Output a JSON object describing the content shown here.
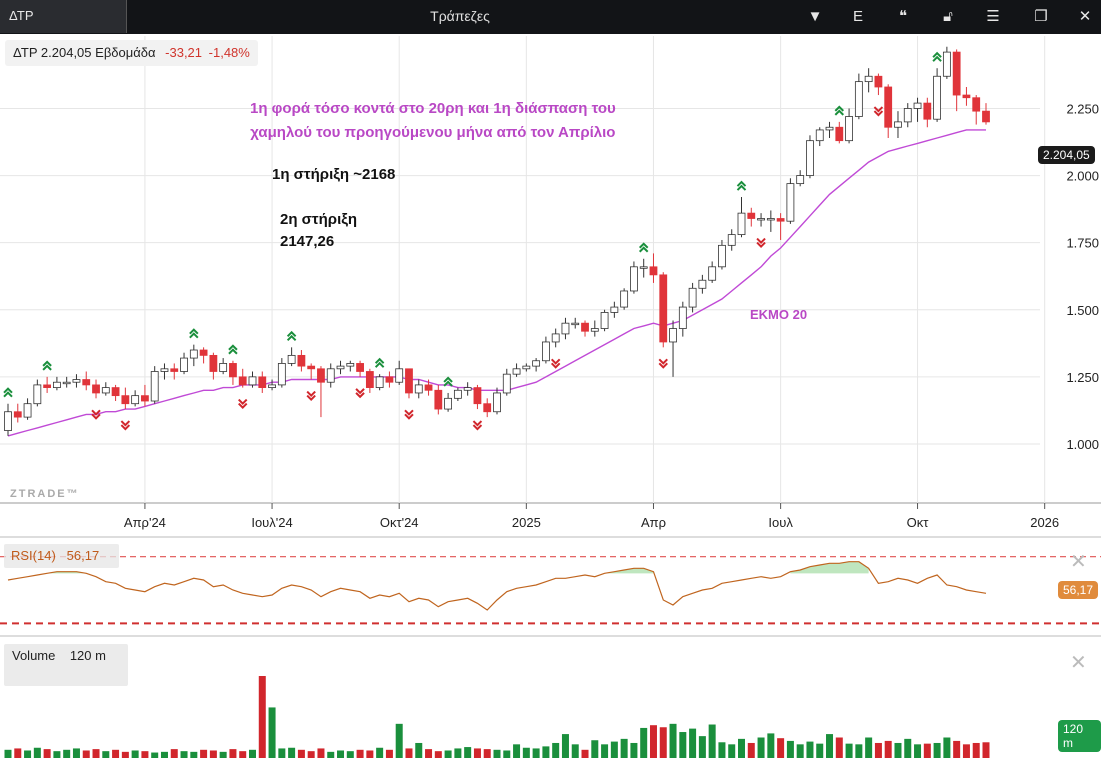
{
  "window": {
    "tab_label": "ΔΤΡ",
    "title": "Τράπεζες",
    "toolbar_icons": [
      "chevron-down-icon",
      "e-icon",
      "quote-icon",
      "lock-icon",
      "menu-icon",
      "restore-icon",
      "close-icon"
    ],
    "toolbar_e_label": "E"
  },
  "header": {
    "symbol_price": "ΔΤΡ 2.204,05",
    "period": "Εβδομάδα",
    "change": "-33,21",
    "change_pct": "-1,48%"
  },
  "annotations": {
    "line1": "1η φορά τόσο κοντά στο 20ρη και 1η διάσπαση του",
    "line2": "χαμηλού του προηγούμενου μήνα από τον Απρίλιο",
    "support1": "1η στήριξη ~2168",
    "support2_a": "2η στήριξη",
    "support2_b": "2147,26",
    "ema_label": "ΕΚΜΟ 20"
  },
  "watermark": "ZTRADE™",
  "price_pill": "2.204,05",
  "rsi": {
    "label": "RSI(14)",
    "value": "56,17",
    "overbought": 70,
    "oversold": 30
  },
  "volume": {
    "label": "Volume",
    "value": "120 m",
    "pill": "120 m"
  },
  "colors": {
    "up": "#ffffff",
    "up_border": "#333333",
    "down": "#e0343a",
    "ema": "#c04ad6",
    "rsi_line": "#c0651f",
    "vol_up": "#1a8f3c",
    "vol_down": "#d1262c",
    "signal_up": "#1a8f3c",
    "signal_down": "#d1262c"
  },
  "chart_data": {
    "type": "candlestick",
    "x_ticks": [
      {
        "label": "Απρ'24",
        "i": 14
      },
      {
        "label": "Ιουλ'24",
        "i": 27
      },
      {
        "label": "Οκτ'24",
        "i": 40
      },
      {
        "label": "2025",
        "i": 53
      },
      {
        "label": "Απρ",
        "i": 66
      },
      {
        "label": "Ιουλ",
        "i": 79
      },
      {
        "label": "Οκτ",
        "i": 93
      },
      {
        "label": "2026",
        "i": 106
      }
    ],
    "y_ticks": [
      1.0,
      1.25,
      1.5,
      1.75,
      2.0,
      2.25
    ],
    "y_tick_labels": [
      "1.000",
      "1.250",
      "1.500",
      "1.750",
      "2.000",
      "2.250"
    ],
    "ylim": [
      0.78,
      2.52
    ],
    "candles": [
      [
        1.05,
        1.12,
        1.03,
        1.15
      ],
      [
        1.12,
        1.1,
        1.08,
        1.15
      ],
      [
        1.1,
        1.15,
        1.09,
        1.17
      ],
      [
        1.15,
        1.22,
        1.14,
        1.24
      ],
      [
        1.22,
        1.21,
        1.19,
        1.25
      ],
      [
        1.21,
        1.23,
        1.2,
        1.25
      ],
      [
        1.23,
        1.23,
        1.21,
        1.25
      ],
      [
        1.23,
        1.24,
        1.21,
        1.26
      ],
      [
        1.24,
        1.22,
        1.2,
        1.27
      ],
      [
        1.22,
        1.19,
        1.17,
        1.24
      ],
      [
        1.19,
        1.21,
        1.18,
        1.23
      ],
      [
        1.21,
        1.18,
        1.16,
        1.22
      ],
      [
        1.18,
        1.15,
        1.13,
        1.21
      ],
      [
        1.15,
        1.18,
        1.14,
        1.2
      ],
      [
        1.18,
        1.16,
        1.14,
        1.22
      ],
      [
        1.16,
        1.27,
        1.15,
        1.29
      ],
      [
        1.27,
        1.28,
        1.24,
        1.3
      ],
      [
        1.28,
        1.27,
        1.24,
        1.3
      ],
      [
        1.27,
        1.32,
        1.26,
        1.34
      ],
      [
        1.32,
        1.35,
        1.29,
        1.37
      ],
      [
        1.35,
        1.33,
        1.3,
        1.36
      ],
      [
        1.33,
        1.27,
        1.24,
        1.34
      ],
      [
        1.27,
        1.3,
        1.26,
        1.32
      ],
      [
        1.3,
        1.25,
        1.22,
        1.31
      ],
      [
        1.25,
        1.22,
        1.21,
        1.28
      ],
      [
        1.22,
        1.25,
        1.21,
        1.27
      ],
      [
        1.25,
        1.21,
        1.19,
        1.27
      ],
      [
        1.21,
        1.22,
        1.2,
        1.24
      ],
      [
        1.22,
        1.3,
        1.21,
        1.32
      ],
      [
        1.3,
        1.33,
        1.29,
        1.36
      ],
      [
        1.33,
        1.29,
        1.27,
        1.35
      ],
      [
        1.29,
        1.28,
        1.24,
        1.3
      ],
      [
        1.28,
        1.23,
        1.1,
        1.29
      ],
      [
        1.23,
        1.28,
        1.21,
        1.3
      ],
      [
        1.28,
        1.29,
        1.26,
        1.31
      ],
      [
        1.29,
        1.3,
        1.27,
        1.31
      ],
      [
        1.3,
        1.27,
        1.25,
        1.31
      ],
      [
        1.27,
        1.21,
        1.19,
        1.28
      ],
      [
        1.21,
        1.25,
        1.2,
        1.26
      ],
      [
        1.25,
        1.23,
        1.21,
        1.27
      ],
      [
        1.23,
        1.28,
        1.22,
        1.31
      ],
      [
        1.28,
        1.19,
        1.17,
        1.28
      ],
      [
        1.19,
        1.22,
        1.17,
        1.24
      ],
      [
        1.22,
        1.2,
        1.18,
        1.24
      ],
      [
        1.2,
        1.13,
        1.11,
        1.22
      ],
      [
        1.13,
        1.17,
        1.12,
        1.19
      ],
      [
        1.17,
        1.2,
        1.16,
        1.21
      ],
      [
        1.2,
        1.21,
        1.18,
        1.23
      ],
      [
        1.21,
        1.15,
        1.13,
        1.22
      ],
      [
        1.15,
        1.12,
        1.1,
        1.17
      ],
      [
        1.12,
        1.19,
        1.11,
        1.21
      ],
      [
        1.19,
        1.26,
        1.18,
        1.28
      ],
      [
        1.26,
        1.28,
        1.25,
        1.3
      ],
      [
        1.28,
        1.29,
        1.27,
        1.3
      ],
      [
        1.29,
        1.31,
        1.27,
        1.32
      ],
      [
        1.31,
        1.38,
        1.3,
        1.4
      ],
      [
        1.38,
        1.41,
        1.36,
        1.43
      ],
      [
        1.41,
        1.45,
        1.39,
        1.47
      ],
      [
        1.45,
        1.45,
        1.43,
        1.47
      ],
      [
        1.45,
        1.42,
        1.4,
        1.46
      ],
      [
        1.42,
        1.43,
        1.4,
        1.46
      ],
      [
        1.43,
        1.49,
        1.42,
        1.5
      ],
      [
        1.49,
        1.51,
        1.47,
        1.53
      ],
      [
        1.51,
        1.57,
        1.5,
        1.58
      ],
      [
        1.57,
        1.66,
        1.56,
        1.68
      ],
      [
        1.66,
        1.66,
        1.62,
        1.69
      ],
      [
        1.66,
        1.63,
        1.6,
        1.71
      ],
      [
        1.63,
        1.38,
        1.36,
        1.64
      ],
      [
        1.38,
        1.43,
        1.25,
        1.46
      ],
      [
        1.43,
        1.51,
        1.4,
        1.53
      ],
      [
        1.51,
        1.58,
        1.49,
        1.6
      ],
      [
        1.58,
        1.61,
        1.56,
        1.63
      ],
      [
        1.61,
        1.66,
        1.6,
        1.68
      ],
      [
        1.66,
        1.74,
        1.65,
        1.76
      ],
      [
        1.74,
        1.78,
        1.72,
        1.8
      ],
      [
        1.78,
        1.86,
        1.77,
        1.92
      ],
      [
        1.86,
        1.84,
        1.81,
        1.88
      ],
      [
        1.84,
        1.84,
        1.81,
        1.86
      ],
      [
        1.84,
        1.84,
        1.79,
        1.87
      ],
      [
        1.84,
        1.83,
        1.76,
        1.86
      ],
      [
        1.83,
        1.97,
        1.82,
        1.99
      ],
      [
        1.97,
        2.0,
        1.96,
        2.02
      ],
      [
        2.0,
        2.13,
        1.99,
        2.15
      ],
      [
        2.13,
        2.17,
        2.11,
        2.18
      ],
      [
        2.17,
        2.18,
        2.14,
        2.2
      ],
      [
        2.18,
        2.13,
        2.12,
        2.2
      ],
      [
        2.13,
        2.22,
        2.12,
        2.25
      ],
      [
        2.22,
        2.35,
        2.21,
        2.38
      ],
      [
        2.35,
        2.37,
        2.31,
        2.4
      ],
      [
        2.37,
        2.33,
        2.3,
        2.38
      ],
      [
        2.33,
        2.18,
        2.14,
        2.34
      ],
      [
        2.18,
        2.2,
        2.14,
        2.24
      ],
      [
        2.2,
        2.25,
        2.18,
        2.27
      ],
      [
        2.25,
        2.27,
        2.2,
        2.29
      ],
      [
        2.27,
        2.21,
        2.18,
        2.29
      ],
      [
        2.21,
        2.37,
        2.2,
        2.4
      ],
      [
        2.37,
        2.46,
        2.36,
        2.48
      ],
      [
        2.46,
        2.3,
        2.24,
        2.47
      ],
      [
        2.3,
        2.29,
        2.26,
        2.33
      ],
      [
        2.29,
        2.24,
        2.19,
        2.3
      ],
      [
        2.24,
        2.2,
        2.19,
        2.27
      ]
    ],
    "ema20": [
      1.03,
      1.04,
      1.05,
      1.06,
      1.07,
      1.08,
      1.09,
      1.1,
      1.11,
      1.11,
      1.12,
      1.12,
      1.13,
      1.13,
      1.14,
      1.15,
      1.16,
      1.17,
      1.18,
      1.19,
      1.2,
      1.2,
      1.21,
      1.21,
      1.22,
      1.22,
      1.22,
      1.23,
      1.23,
      1.24,
      1.24,
      1.24,
      1.24,
      1.24,
      1.25,
      1.25,
      1.25,
      1.25,
      1.25,
      1.25,
      1.25,
      1.24,
      1.24,
      1.23,
      1.22,
      1.22,
      1.21,
      1.21,
      1.2,
      1.2,
      1.2,
      1.2,
      1.21,
      1.22,
      1.23,
      1.25,
      1.27,
      1.29,
      1.31,
      1.33,
      1.35,
      1.37,
      1.39,
      1.41,
      1.43,
      1.44,
      1.45,
      1.44,
      1.45,
      1.46,
      1.48,
      1.5,
      1.52,
      1.54,
      1.57,
      1.6,
      1.63,
      1.66,
      1.7,
      1.73,
      1.77,
      1.81,
      1.85,
      1.89,
      1.93,
      1.96,
      1.99,
      2.02,
      2.05,
      2.07,
      2.09,
      2.1,
      2.11,
      2.12,
      2.13,
      2.14,
      2.15,
      2.16,
      2.17,
      2.17,
      2.17
    ],
    "signals_up_idx": [
      0,
      4,
      19,
      23,
      29,
      38,
      45,
      65,
      75,
      85,
      95
    ],
    "signals_down_idx": [
      9,
      12,
      24,
      31,
      36,
      41,
      48,
      56,
      67,
      77,
      89
    ],
    "rsi": [
      56,
      57,
      58,
      59,
      60,
      61,
      61,
      61,
      60,
      58,
      55,
      54,
      51,
      50,
      49,
      52,
      54,
      53,
      55,
      57,
      56,
      52,
      53,
      50,
      48,
      47,
      46,
      47,
      51,
      53,
      52,
      50,
      46,
      49,
      51,
      50,
      49,
      45,
      47,
      46,
      48,
      43,
      45,
      44,
      40,
      43,
      44,
      45,
      42,
      38,
      44,
      49,
      51,
      52,
      53,
      55,
      57,
      57,
      58,
      59,
      58,
      60,
      61,
      62,
      63,
      63,
      61,
      44,
      41,
      46,
      48,
      50,
      51,
      54,
      55,
      56,
      57,
      58,
      57,
      58,
      61,
      62,
      64,
      65,
      66,
      66,
      67,
      67,
      63,
      54,
      55,
      57,
      56,
      54,
      57,
      59,
      53,
      52,
      50,
      49,
      48
    ],
    "volume_m": [
      12,
      14,
      11,
      15,
      13,
      10,
      12,
      14,
      11,
      13,
      10,
      12,
      9,
      11,
      10,
      8,
      9,
      13,
      10,
      9,
      12,
      11,
      9,
      13,
      10,
      12,
      9,
      11,
      14,
      15,
      12,
      10,
      14,
      9,
      11,
      10,
      12,
      11,
      15,
      12,
      50,
      14,
      22,
      13,
      10,
      11,
      14,
      16,
      14,
      13,
      12,
      11,
      20,
      15,
      14,
      17,
      22,
      35,
      20,
      12,
      26,
      20,
      24,
      28,
      22,
      44,
      48,
      45,
      50,
      38,
      43,
      32,
      49,
      23,
      20,
      28,
      22,
      30,
      36,
      29,
      25,
      20,
      24,
      21,
      35,
      30,
      21,
      20,
      30,
      22,
      25,
      22,
      28,
      20,
      21,
      22,
      30,
      25,
      20,
      22,
      23
    ],
    "volume_big": [
      [
        26,
        120
      ],
      [
        27,
        74
      ]
    ]
  }
}
